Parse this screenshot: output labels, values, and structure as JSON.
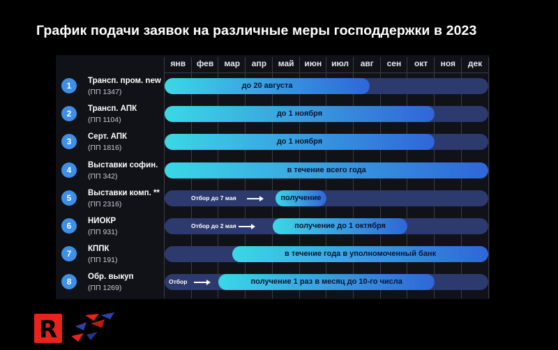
{
  "title": "График подачи заявок на различные меры господдержки в 2023",
  "months": [
    "янв",
    "фев",
    "мар",
    "апр",
    "май",
    "июн",
    "июл",
    "авг",
    "сен",
    "окт",
    "ноя",
    "дек"
  ],
  "rows": [
    {
      "num": "1",
      "name": "Трансп. пром. new",
      "sub": "(ПП 1347)",
      "bar_start": 0,
      "bar_end": 7.6,
      "label": "до 20 августа"
    },
    {
      "num": "2",
      "name": "Трансп. АПК",
      "sub": "(ПП 1104)",
      "bar_start": 0,
      "bar_end": 10,
      "label": "до 1 ноября"
    },
    {
      "num": "3",
      "name": "Серт. АПК",
      "sub": "(ПП 1816)",
      "bar_start": 0,
      "bar_end": 10,
      "label": "до 1 ноября"
    },
    {
      "num": "4",
      "name": "Выставки софин.",
      "sub": "(ПП 342)",
      "bar_start": 0,
      "bar_end": 12,
      "label": "в течение всего года"
    },
    {
      "num": "5",
      "name": "Выставки комп. **",
      "sub": "(ПП 2316)",
      "bar_start": 4.1,
      "bar_end": 6.0,
      "label": "получение",
      "pre": "Отбор до 7 мая"
    },
    {
      "num": "6",
      "name": "НИОКР",
      "sub": "(ПП 931)",
      "bar_start": 4.0,
      "bar_end": 9.0,
      "label": "получение до 1 октября",
      "pre": "Отбор до 2 мая"
    },
    {
      "num": "7",
      "name": "КППК",
      "sub": "(ПП 191)",
      "bar_start": 2.5,
      "bar_end": 12,
      "label": "в течение года в уполномоченный банк"
    },
    {
      "num": "8",
      "name": "Обр. выкуп",
      "sub": "(ПП 1269)",
      "bar_start": 2.0,
      "bar_end": 10,
      "label": "получение 1 раз в месяц до 10-го числа",
      "pre": "Отбор"
    }
  ],
  "chart_data": {
    "type": "bar",
    "title": "График подачи заявок на различные меры господдержки в 2023",
    "categories": [
      "Трансп. пром. new (ПП 1347)",
      "Трансп. АПК (ПП 1104)",
      "Серт. АПК (ПП 1816)",
      "Выставки софин. (ПП 342)",
      "Выставки комп. ** (ПП 2316)",
      "НИОКР (ПП 931)",
      "КППК (ПП 191)",
      "Обр. выкуп (ПП 1269)"
    ],
    "x_ticks": [
      "янв",
      "фев",
      "мар",
      "апр",
      "май",
      "июн",
      "июл",
      "авг",
      "сен",
      "окт",
      "ноя",
      "дек"
    ],
    "start_month": [
      0,
      0,
      0,
      0,
      4.1,
      4.0,
      2.5,
      2.0
    ],
    "end_month": [
      7.6,
      10,
      10,
      12,
      6.0,
      9.0,
      12,
      10
    ],
    "xlim": [
      0,
      12
    ],
    "grid": true,
    "colors": {
      "bar_start": "#3ad8e6",
      "bar_end": "#2f66d8",
      "track": "#2d3a6e",
      "badge": "#3d8fe8"
    }
  }
}
